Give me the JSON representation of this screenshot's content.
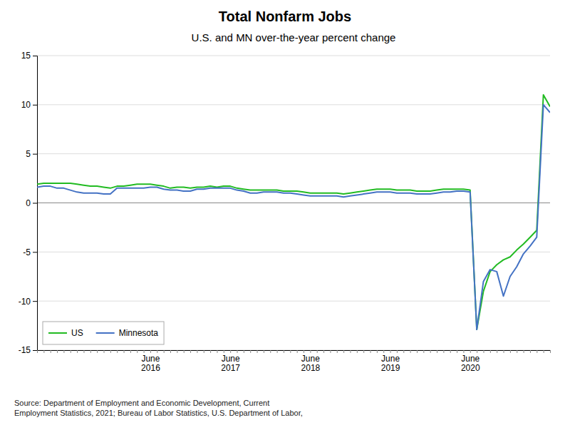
{
  "chart_data": {
    "type": "line",
    "title": "Total Nonfarm Jobs",
    "subtitle": "U.S. and MN over-the-year percent change",
    "annotations": [
      "Source: Department of Employment and Economic Development, Current\nEmployment Statistics, 2021; Bureau of Labor Statistics, U.S. Department of Labor,"
    ],
    "categories": [
      null,
      null,
      null,
      null,
      null,
      null,
      null,
      null,
      null,
      null,
      null,
      null,
      null,
      null,
      null,
      null,
      null,
      "June\n2016",
      null,
      null,
      null,
      null,
      null,
      null,
      null,
      null,
      null,
      null,
      null,
      "June\n2017",
      null,
      null,
      null,
      null,
      null,
      null,
      null,
      null,
      null,
      null,
      null,
      "June\n2018",
      null,
      null,
      null,
      null,
      null,
      null,
      null,
      null,
      null,
      null,
      null,
      "June\n2019",
      null,
      null,
      null,
      null,
      null,
      null,
      null,
      null,
      null,
      null,
      null,
      "June\n2020",
      null,
      null,
      null,
      null,
      null,
      null,
      null,
      null,
      null,
      null,
      null,
      null
    ],
    "series": [
      {
        "name": "US",
        "color": "#22bb22",
        "values": [
          1.9,
          2.0,
          2.0,
          2.0,
          2.0,
          2.0,
          1.9,
          1.8,
          1.7,
          1.7,
          1.6,
          1.5,
          1.7,
          1.7,
          1.8,
          1.9,
          1.9,
          1.9,
          1.8,
          1.7,
          1.5,
          1.6,
          1.6,
          1.5,
          1.6,
          1.6,
          1.7,
          1.6,
          1.7,
          1.7,
          1.5,
          1.4,
          1.3,
          1.3,
          1.3,
          1.3,
          1.3,
          1.2,
          1.2,
          1.2,
          1.1,
          1.0,
          1.0,
          1.0,
          1.0,
          1.0,
          0.9,
          1.0,
          1.1,
          1.2,
          1.3,
          1.4,
          1.4,
          1.4,
          1.3,
          1.3,
          1.3,
          1.2,
          1.2,
          1.2,
          1.3,
          1.4,
          1.4,
          1.4,
          1.4,
          1.3,
          -12.9,
          -9.0,
          -7.0,
          -6.3,
          -5.8,
          -5.5,
          -4.8,
          -4.2,
          -3.5,
          -2.8,
          11.0,
          9.8
        ]
      },
      {
        "name": "Minnesota",
        "color": "#4472c4",
        "values": [
          1.6,
          1.7,
          1.7,
          1.5,
          1.5,
          1.3,
          1.1,
          1.0,
          1.0,
          1.0,
          0.9,
          0.9,
          1.5,
          1.5,
          1.5,
          1.5,
          1.5,
          1.6,
          1.6,
          1.4,
          1.3,
          1.3,
          1.2,
          1.2,
          1.4,
          1.4,
          1.5,
          1.5,
          1.5,
          1.5,
          1.3,
          1.2,
          1.0,
          1.0,
          1.1,
          1.1,
          1.1,
          1.0,
          1.0,
          0.9,
          0.8,
          0.7,
          0.7,
          0.7,
          0.7,
          0.7,
          0.6,
          0.7,
          0.8,
          0.9,
          1.0,
          1.1,
          1.1,
          1.1,
          1.0,
          1.0,
          1.0,
          0.9,
          0.9,
          0.9,
          1.0,
          1.1,
          1.1,
          1.2,
          1.2,
          1.1,
          -12.9,
          -8.0,
          -6.8,
          -7.0,
          -9.5,
          -7.5,
          -6.5,
          -5.2,
          -4.4,
          -3.5,
          10.0,
          9.2
        ]
      }
    ],
    "ylim": [
      -15,
      15
    ],
    "yticks": [
      -15,
      -10,
      -5,
      0,
      5,
      10,
      15
    ],
    "grid": true,
    "legend": "lower left"
  }
}
